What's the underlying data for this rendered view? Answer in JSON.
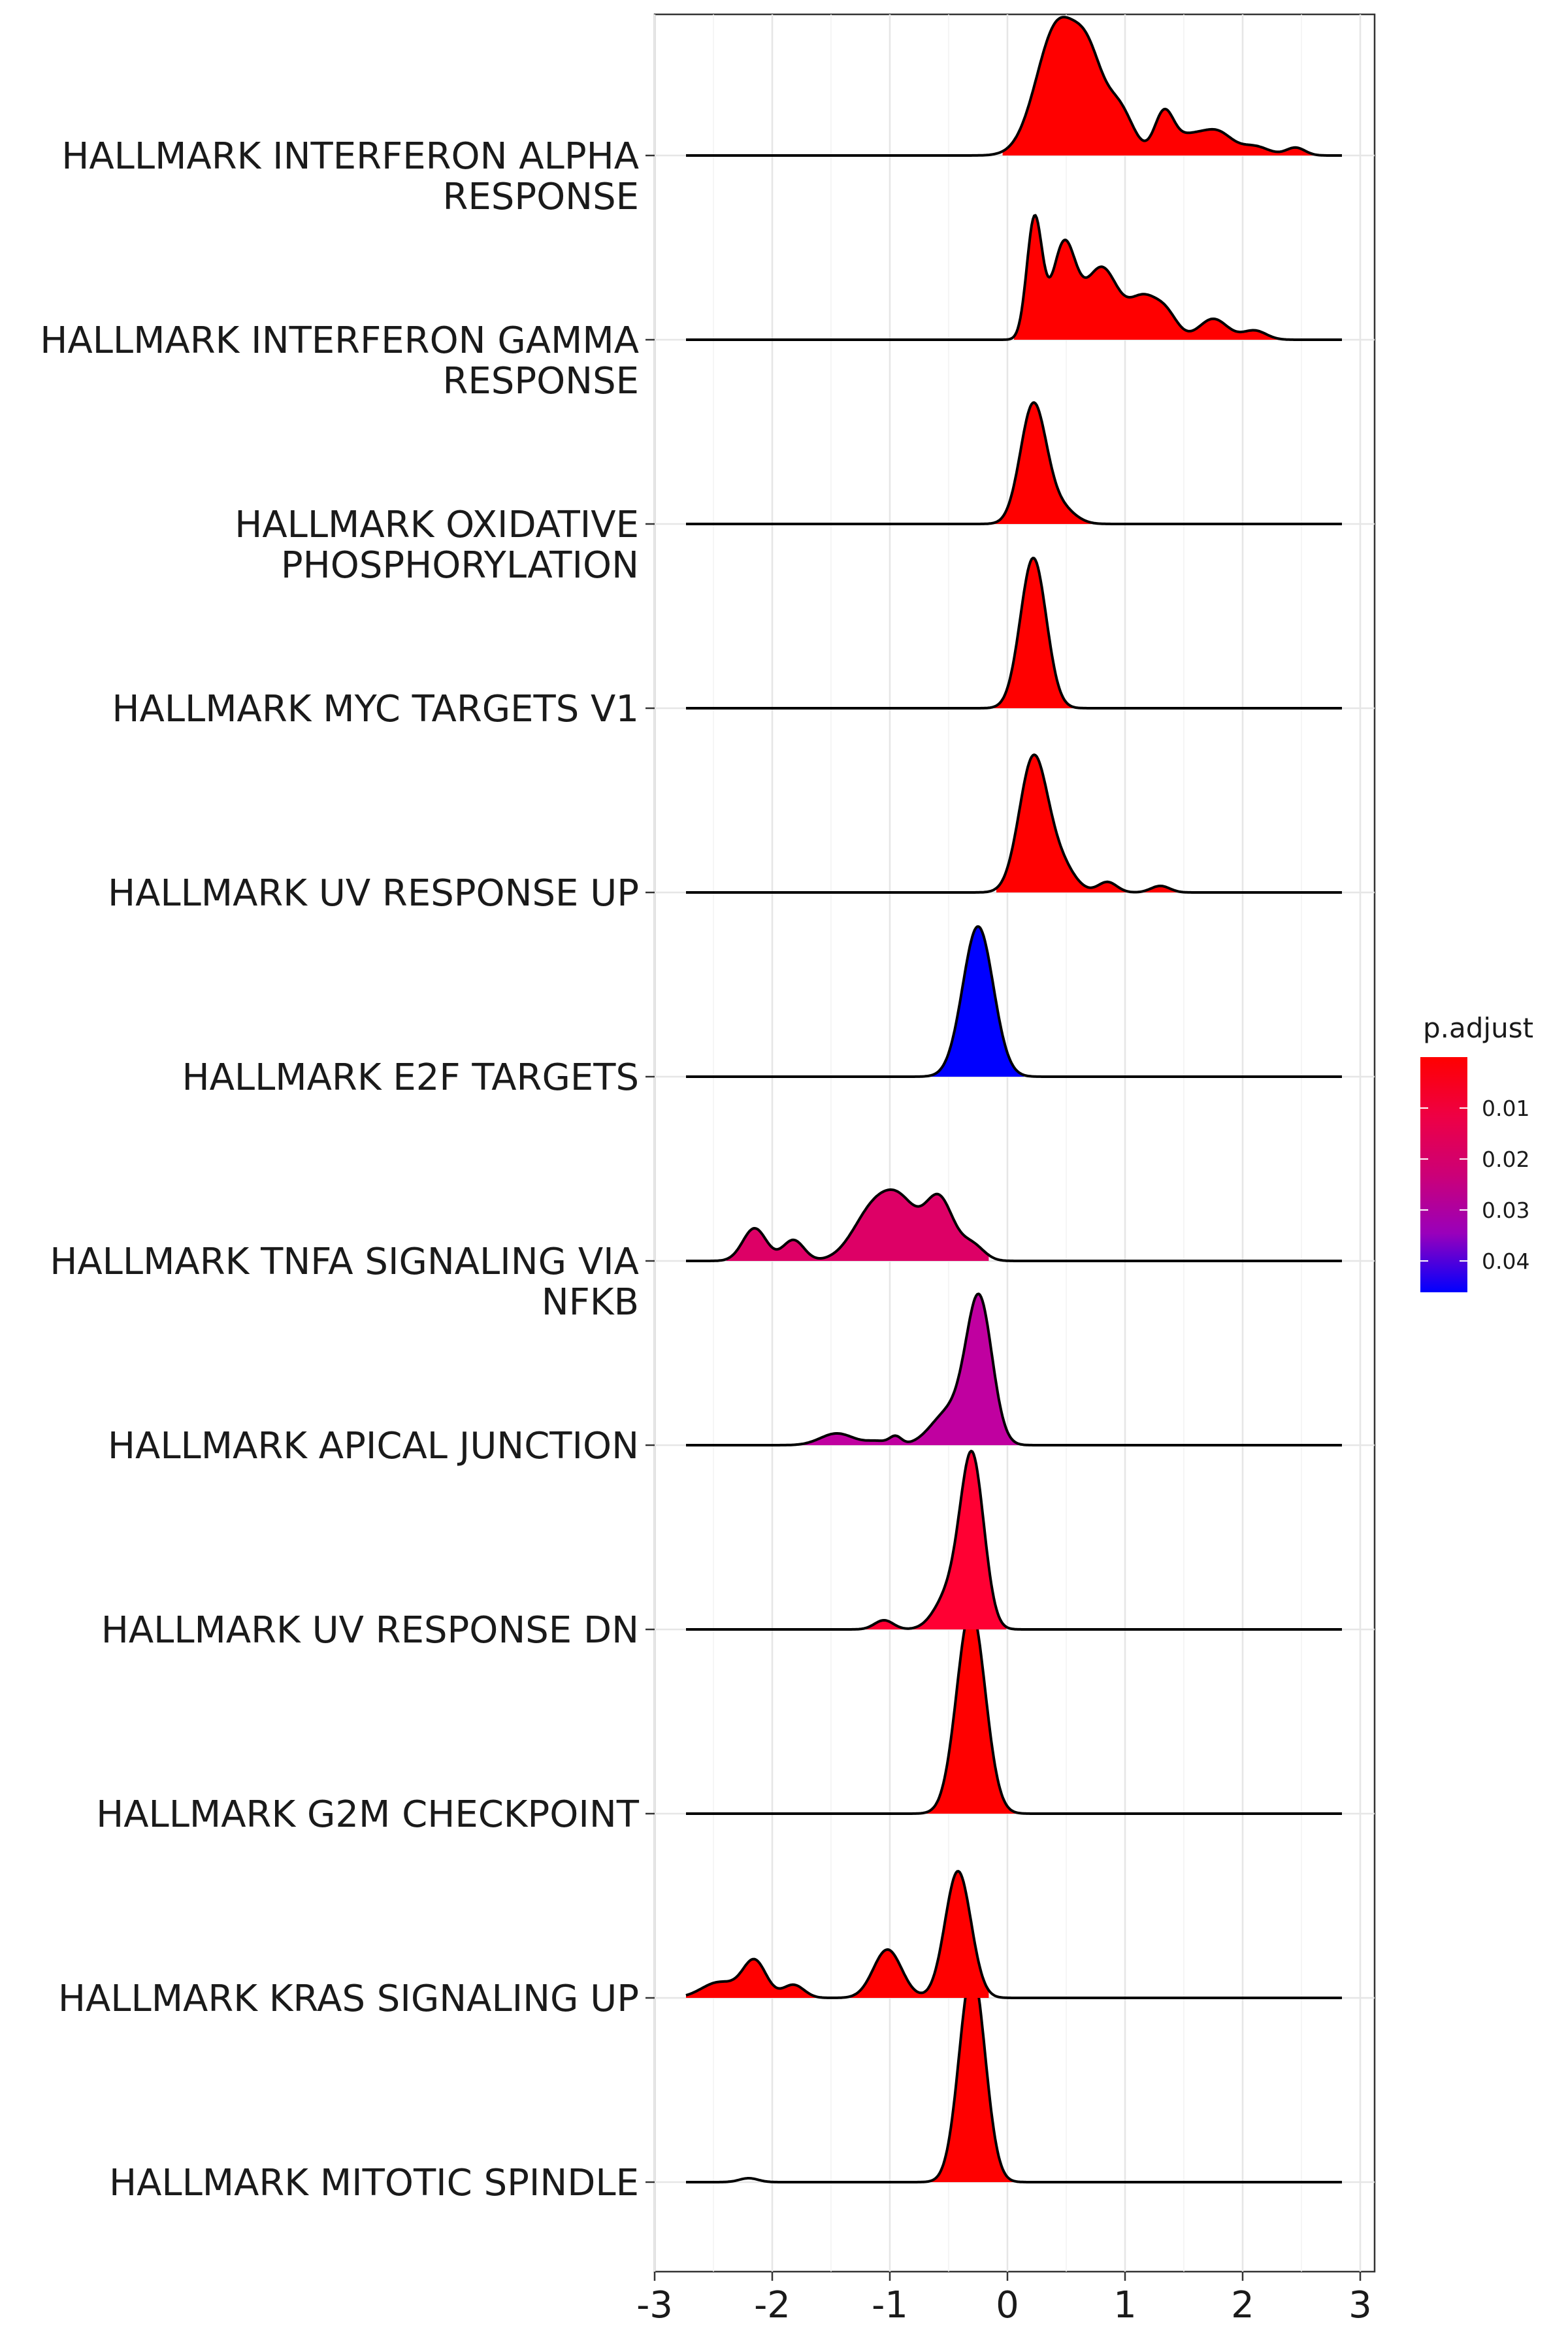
{
  "chart_data": {
    "type": "ridgeline",
    "title": "",
    "xlabel": "",
    "ylabel": "",
    "xlim": [
      -3,
      3
    ],
    "x_ticks": [
      "-3",
      "-2",
      "-1",
      "0",
      "1",
      "2",
      "3"
    ],
    "grid": true,
    "legend": {
      "title": "p.adjust",
      "position": "right",
      "labels": [
        "0.01",
        "0.02",
        "0.03",
        "0.04"
      ],
      "colors": [
        "#FF0000",
        "#0000FF"
      ]
    },
    "series": [
      {
        "label": "HALLMARK INTERFERON ALPHA RESPONSE",
        "lines": [
          "HALLMARK INTERFERON ALPHA",
          "RESPONSE"
        ],
        "fill": "#FF0000",
        "range": [
          -0.05,
          2.65
        ],
        "peaks": [
          [
            0.43,
            0.18,
            1.0
          ],
          [
            0.7,
            0.12,
            0.52
          ],
          [
            0.95,
            0.12,
            0.35
          ],
          [
            1.33,
            0.08,
            0.3
          ],
          [
            1.55,
            0.15,
            0.15
          ],
          [
            1.8,
            0.12,
            0.15
          ],
          [
            2.1,
            0.12,
            0.07
          ],
          [
            2.45,
            0.08,
            0.06
          ]
        ]
      },
      {
        "label": "HALLMARK INTERFERON GAMMA RESPONSE",
        "lines": [
          "HALLMARK INTERFERON GAMMA",
          "RESPONSE"
        ],
        "fill": "#FF0000",
        "range": [
          0.05,
          2.35
        ],
        "peaks": [
          [
            0.23,
            0.065,
            0.92
          ],
          [
            0.48,
            0.1,
            0.72
          ],
          [
            0.8,
            0.14,
            0.55
          ],
          [
            1.15,
            0.12,
            0.3
          ],
          [
            1.35,
            0.1,
            0.18
          ],
          [
            1.75,
            0.12,
            0.16
          ],
          [
            2.1,
            0.1,
            0.07
          ]
        ]
      },
      {
        "label": "HALLMARK OXIDATIVE PHOSPHORYLATION",
        "lines": [
          "HALLMARK OXIDATIVE",
          "PHOSPHORYLATION"
        ],
        "fill": "#FF0000",
        "range": [
          -0.2,
          0.85
        ],
        "peaks": [
          [
            0.22,
            0.11,
            0.91
          ],
          [
            0.45,
            0.12,
            0.12
          ]
        ]
      },
      {
        "label": "HALLMARK MYC TARGETS V1",
        "lines": [
          "HALLMARK MYC TARGETS V1"
        ],
        "fill": "#FF0000",
        "range": [
          -0.2,
          0.7
        ],
        "peaks": [
          [
            0.22,
            0.11,
            1.15
          ]
        ]
      },
      {
        "label": "HALLMARK UV RESPONSE UP",
        "lines": [
          "HALLMARK UV RESPONSE UP"
        ],
        "fill": "#FF0000",
        "range": [
          -0.1,
          1.55
        ],
        "peaks": [
          [
            0.22,
            0.12,
            1.02
          ],
          [
            0.45,
            0.12,
            0.2
          ],
          [
            0.85,
            0.08,
            0.08
          ],
          [
            1.3,
            0.08,
            0.05
          ]
        ]
      },
      {
        "label": "HALLMARK E2F TARGETS",
        "lines": [
          "HALLMARK E2F TARGETS"
        ],
        "fill": "#0000FF",
        "range": [
          -0.9,
          0.15
        ],
        "peaks": [
          [
            -0.25,
            0.13,
            1.15
          ]
        ]
      },
      {
        "label": "HALLMARK TNFA SIGNALING VIA NFKB",
        "lines": [
          "HALLMARK TNFA SIGNALING VIA",
          "NFKB"
        ],
        "fill": "#DD0066",
        "range": [
          -2.4,
          -0.15
        ],
        "peaks": [
          [
            -2.15,
            0.1,
            0.25
          ],
          [
            -1.82,
            0.09,
            0.16
          ],
          [
            -1.12,
            0.18,
            0.42
          ],
          [
            -0.88,
            0.14,
            0.3
          ],
          [
            -0.58,
            0.12,
            0.47
          ],
          [
            -0.3,
            0.1,
            0.12
          ]
        ]
      },
      {
        "label": "HALLMARK APICAL JUNCTION",
        "lines": [
          "HALLMARK APICAL JUNCTION"
        ],
        "fill": "#C000A0",
        "range": [
          -1.85,
          0.1
        ],
        "peaks": [
          [
            -1.45,
            0.14,
            0.09
          ],
          [
            -1.1,
            0.1,
            0.03
          ],
          [
            -0.95,
            0.05,
            0.06
          ],
          [
            -0.5,
            0.15,
            0.25
          ],
          [
            -0.24,
            0.11,
            1.1
          ]
        ]
      },
      {
        "label": "HALLMARK UV RESPONSE DN",
        "lines": [
          "HALLMARK UV RESPONSE DN"
        ],
        "fill": "#FF0033",
        "range": [
          -1.35,
          0.0
        ],
        "peaks": [
          [
            -1.05,
            0.08,
            0.07
          ],
          [
            -0.5,
            0.12,
            0.25
          ],
          [
            -0.3,
            0.1,
            1.3
          ]
        ]
      },
      {
        "label": "HALLMARK G2M CHECKPOINT",
        "lines": [
          "HALLMARK G2M CHECKPOINT"
        ],
        "fill": "#FF0000",
        "range": [
          -0.95,
          0.15
        ],
        "peaks": [
          [
            -0.31,
            0.12,
            1.57
          ]
        ]
      },
      {
        "label": "HALLMARK KRAS SIGNALING UP",
        "lines": [
          "HALLMARK KRAS SIGNALING UP"
        ],
        "fill": "#FF0000",
        "range": [
          -2.8,
          -0.15
        ],
        "peaks": [
          [
            -2.45,
            0.15,
            0.12
          ],
          [
            -2.15,
            0.1,
            0.28
          ],
          [
            -1.82,
            0.09,
            0.1
          ],
          [
            -1.02,
            0.12,
            0.37
          ],
          [
            -0.42,
            0.11,
            0.97
          ]
        ]
      },
      {
        "label": "HALLMARK MITOTIC SPINDLE",
        "lines": [
          "HALLMARK MITOTIC SPINDLE"
        ],
        "fill": "#FF0000",
        "range": [
          -0.95,
          0.15
        ],
        "peaks": [
          [
            -2.2,
            0.08,
            0.03
          ],
          [
            -0.3,
            0.11,
            1.62
          ]
        ]
      }
    ]
  }
}
